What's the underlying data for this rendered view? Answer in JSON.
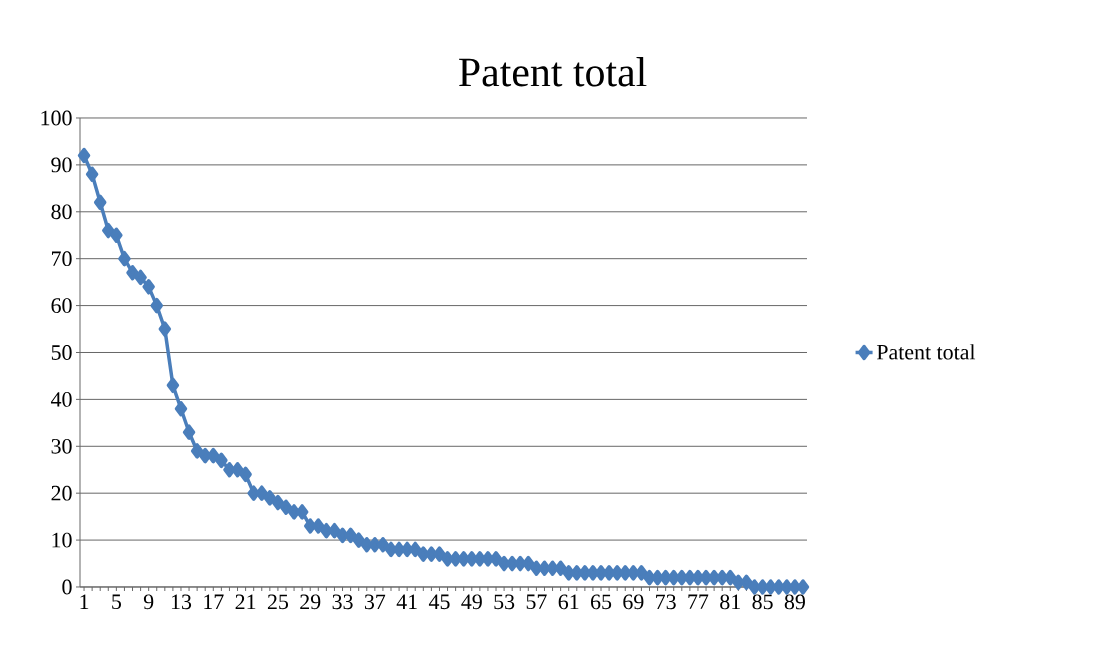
{
  "chart_data": {
    "type": "line",
    "title": "Patent total",
    "categories": [
      "1",
      null,
      null,
      null,
      "5",
      null,
      null,
      null,
      "9",
      null,
      null,
      null,
      "13",
      null,
      null,
      null,
      "17",
      null,
      null,
      null,
      "21",
      null,
      null,
      null,
      "25",
      null,
      null,
      null,
      "29",
      null,
      null,
      null,
      "33",
      null,
      null,
      null,
      "37",
      null,
      null,
      null,
      "41",
      null,
      null,
      null,
      "45",
      null,
      null,
      null,
      "49",
      null,
      null,
      null,
      "53",
      null,
      null,
      null,
      "57",
      null,
      null,
      null,
      "61",
      null,
      null,
      null,
      "65",
      null,
      null,
      null,
      "69",
      null,
      null,
      null,
      "73",
      null,
      null,
      null,
      "77",
      null,
      null,
      null,
      "81",
      null,
      null,
      null,
      "85",
      null,
      null,
      null,
      "89",
      null
    ],
    "series": [
      {
        "name": "Patent total",
        "color": "#4a7ebb",
        "values": [
          92,
          88,
          82,
          76,
          75,
          70,
          67,
          66,
          64,
          60,
          55,
          43,
          38,
          33,
          29,
          28,
          28,
          27,
          25,
          25,
          24,
          20,
          20,
          19,
          18,
          17,
          16,
          16,
          13,
          13,
          12,
          12,
          11,
          11,
          10,
          9,
          9,
          9,
          8,
          8,
          8,
          8,
          7,
          7,
          7,
          6,
          6,
          6,
          6,
          6,
          6,
          6,
          5,
          5,
          5,
          5,
          4,
          4,
          4,
          4,
          3,
          3,
          3,
          3,
          3,
          3,
          3,
          3,
          3,
          3,
          2,
          2,
          2,
          2,
          2,
          2,
          2,
          2,
          2,
          2,
          2,
          1,
          1,
          0,
          0,
          0,
          0,
          0,
          0,
          0
        ]
      }
    ],
    "ylim": [
      0,
      100
    ],
    "yticks": [
      0,
      10,
      20,
      30,
      40,
      50,
      60,
      70,
      80,
      90,
      100
    ],
    "grid": "y",
    "legend": "right",
    "marker": "diamond",
    "line_style": "solid"
  }
}
